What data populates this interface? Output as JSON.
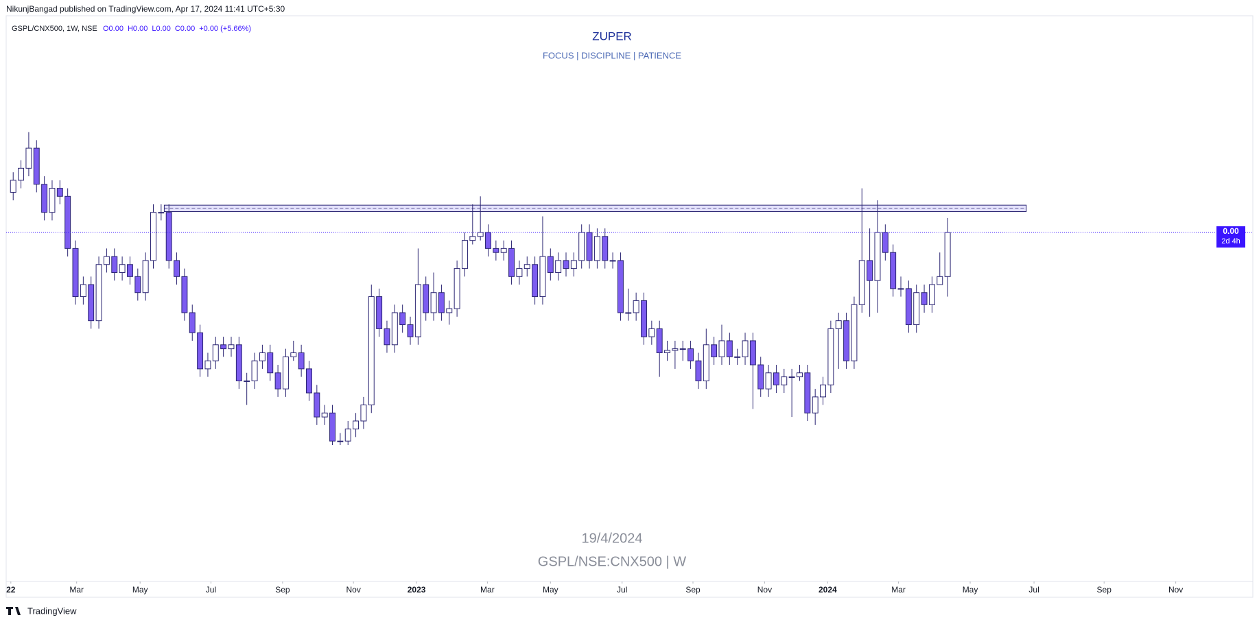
{
  "header": "NikunjBangad published on TradingView.com, Apr 17, 2024 11:41 UTC+5:30",
  "footer": "TradingView",
  "chart_data": {
    "type": "candlestick",
    "title": "ZUPER",
    "subtitle": "FOCUS | DISCIPLINE | PATIENCE",
    "legend_symbol": "GSPL/CNX500, 1W, NSE",
    "legend_ohlc": [
      "O0.00",
      "H0.00",
      "L0.00",
      "C0.00"
    ],
    "legend_change": "+0.00 (+5.66%)",
    "watermark": [
      "19/4/2024",
      "GSPL/NSE:CNX500 | W"
    ],
    "price_label": "0.00",
    "countdown": "2d 4h",
    "colors": {
      "up": "#ffffff",
      "down": "#7c5cf0",
      "outline": "#2a2472",
      "price_box": "#3a14ff",
      "zone": "#6a5cf0"
    },
    "open": [
      360,
      375,
      390,
      415,
      370,
      335,
      365,
      355,
      290,
      230,
      245,
      200,
      270,
      280,
      260,
      270,
      255,
      235,
      275,
      335,
      335,
      275,
      255,
      210,
      185,
      140,
      150,
      170,
      165,
      170,
      125,
      125,
      150,
      160,
      135,
      115,
      155,
      160,
      140,
      110,
      80,
      85,
      50,
      50,
      65,
      75,
      95,
      230,
      190,
      170,
      210,
      195,
      180,
      245,
      210,
      235,
      210,
      215,
      265,
      300,
      305,
      310,
      290,
      285,
      290,
      255,
      265,
      270,
      230,
      280,
      260,
      275,
      265,
      275,
      310,
      275,
      305,
      275,
      275,
      210,
      210,
      225,
      180,
      190,
      160,
      163,
      165,
      165,
      150,
      125,
      170,
      155,
      175,
      155,
      155,
      175,
      145,
      115,
      135,
      120,
      130,
      130,
      135,
      85,
      105,
      120,
      190,
      200,
      150,
      220,
      275,
      250,
      310,
      285,
      240,
      240,
      195,
      235,
      220,
      245,
      255
    ],
    "high": [
      385,
      400,
      435,
      425,
      380,
      375,
      375,
      365,
      300,
      255,
      255,
      280,
      290,
      290,
      280,
      280,
      265,
      285,
      345,
      345,
      345,
      285,
      265,
      220,
      195,
      160,
      180,
      180,
      180,
      180,
      135,
      160,
      170,
      170,
      145,
      165,
      175,
      170,
      150,
      120,
      95,
      95,
      60,
      75,
      85,
      105,
      245,
      240,
      200,
      220,
      220,
      205,
      290,
      255,
      260,
      245,
      225,
      275,
      310,
      345,
      355,
      320,
      300,
      300,
      300,
      275,
      280,
      280,
      330,
      290,
      285,
      285,
      285,
      320,
      320,
      315,
      315,
      285,
      285,
      240,
      235,
      235,
      200,
      200,
      175,
      175,
      175,
      175,
      160,
      190,
      180,
      195,
      185,
      165,
      185,
      185,
      155,
      145,
      145,
      140,
      140,
      145,
      145,
      115,
      130,
      200,
      210,
      210,
      230,
      365,
      315,
      350,
      320,
      295,
      255,
      250,
      245,
      245,
      255,
      285,
      328
    ],
    "low": [
      350,
      365,
      380,
      360,
      325,
      325,
      345,
      280,
      220,
      220,
      190,
      190,
      260,
      250,
      250,
      245,
      225,
      225,
      265,
      325,
      265,
      245,
      200,
      175,
      130,
      130,
      140,
      155,
      155,
      115,
      95,
      115,
      140,
      125,
      105,
      105,
      150,
      130,
      100,
      70,
      70,
      45,
      45,
      45,
      55,
      65,
      85,
      180,
      160,
      160,
      185,
      170,
      170,
      200,
      200,
      200,
      195,
      205,
      255,
      295,
      300,
      280,
      275,
      275,
      245,
      245,
      255,
      220,
      220,
      250,
      250,
      255,
      255,
      265,
      265,
      265,
      265,
      265,
      200,
      200,
      200,
      170,
      170,
      130,
      150,
      140,
      150,
      140,
      115,
      115,
      145,
      145,
      145,
      145,
      145,
      90,
      105,
      105,
      110,
      110,
      80,
      125,
      75,
      70,
      95,
      110,
      140,
      140,
      140,
      210,
      205,
      210,
      275,
      230,
      230,
      185,
      185,
      210,
      210,
      245,
      230
    ],
    "close": [
      375,
      390,
      415,
      370,
      335,
      365,
      355,
      290,
      230,
      245,
      200,
      270,
      280,
      260,
      270,
      255,
      235,
      275,
      335,
      335,
      275,
      255,
      210,
      185,
      140,
      150,
      170,
      165,
      170,
      125,
      125,
      150,
      160,
      135,
      115,
      155,
      160,
      140,
      110,
      80,
      85,
      50,
      50,
      65,
      75,
      95,
      230,
      190,
      170,
      210,
      195,
      180,
      245,
      210,
      235,
      210,
      215,
      265,
      300,
      305,
      310,
      290,
      285,
      290,
      255,
      265,
      270,
      230,
      280,
      260,
      275,
      265,
      275,
      310,
      275,
      305,
      275,
      275,
      210,
      210,
      225,
      180,
      190,
      160,
      163,
      165,
      165,
      150,
      125,
      170,
      155,
      175,
      155,
      155,
      175,
      145,
      115,
      135,
      120,
      130,
      130,
      135,
      85,
      105,
      120,
      190,
      200,
      150,
      220,
      275,
      250,
      310,
      285,
      240,
      240,
      195,
      235,
      220,
      245,
      255,
      310
    ],
    "zone": {
      "ylim": [
        336,
        344
      ],
      "xlim": [
        19.4,
        130.1
      ]
    },
    "xlim": [
      -0.9,
      159.2
    ],
    "ylim": [
      -125,
      580
    ],
    "xticks": [
      {
        "value": -0.3,
        "label": "22"
      },
      {
        "value": 8.15,
        "label": "Mar"
      },
      {
        "value": 16.3,
        "label": "May"
      },
      {
        "value": 25.4,
        "label": "Jul"
      },
      {
        "value": 34.6,
        "label": "Sep"
      },
      {
        "value": 43.7,
        "label": "Nov"
      },
      {
        "value": 51.8,
        "label": "2023"
      },
      {
        "value": 60.9,
        "label": "Mar"
      },
      {
        "value": 69.0,
        "label": "May"
      },
      {
        "value": 78.2,
        "label": "Jul"
      },
      {
        "value": 87.3,
        "label": "Sep"
      },
      {
        "value": 96.5,
        "label": "Nov"
      },
      {
        "value": 104.6,
        "label": "2024"
      },
      {
        "value": 113.7,
        "label": "Mar"
      },
      {
        "value": 122.9,
        "label": "May"
      },
      {
        "value": 131.1,
        "label": "Jul"
      },
      {
        "value": 140.1,
        "label": "Sep"
      },
      {
        "value": 149.3,
        "label": "Nov"
      }
    ]
  }
}
